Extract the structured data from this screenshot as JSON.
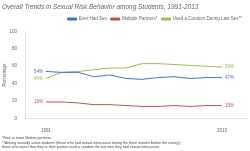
{
  "chart_data": {
    "type": "line",
    "title": "Overall Trends in Sexual Risk Behavior among Students, 1991-2013",
    "ylabel": "Percentage",
    "x": [
      1991,
      1993,
      1995,
      1997,
      1999,
      2001,
      2003,
      2005,
      2007,
      2009,
      2011,
      2013
    ],
    "series": [
      {
        "name": "Ever Had Sex",
        "color": "#4472c4",
        "values": [
          54,
          53,
          53,
          48,
          50,
          46,
          45,
          47,
          48,
          46,
          47,
          47
        ]
      },
      {
        "name": "Multiple Partners*",
        "color": "#c0504d",
        "values": [
          19,
          19,
          18,
          16,
          16,
          15,
          14,
          14,
          15,
          14,
          15,
          15
        ]
      },
      {
        "name": "Used a Condom During Last Sex**",
        "color": "#9bbb59",
        "values": [
          46,
          53,
          54,
          56,
          58,
          58,
          63,
          63,
          62,
          61,
          60,
          59
        ]
      }
    ],
    "xlim": [
      1988.5,
      2016
    ],
    "xticks": [
      1991,
      2013
    ],
    "ylim": [
      0,
      100
    ],
    "yticks": [
      0,
      20,
      40,
      60,
      80,
      100
    ],
    "grid": false,
    "legend": "upper right",
    "annotations": [
      {
        "text": "54%",
        "x": 1991,
        "y": 54,
        "color": "#4472c4"
      },
      {
        "text": "19%",
        "x": 1991,
        "y": 19,
        "color": "#c0504d"
      },
      {
        "text": "46%",
        "x": 1991,
        "y": 46,
        "color": "#9bbb59"
      },
      {
        "text": "47%",
        "x": 2013,
        "y": 47,
        "color": "#4472c4"
      },
      {
        "text": "15%",
        "x": 2013,
        "y": 15,
        "color": "#c0504d"
      },
      {
        "text": "59%",
        "x": 2013,
        "y": 59,
        "color": "#9bbb59"
      }
    ],
    "footnotes": [
      "*Four or more lifetime partners.",
      "**Among sexually active students (those who had sexual intercourse during the three months before the survey);",
      "those who report that they or their partner used a condom the last time they had sexual intercourse."
    ]
  }
}
